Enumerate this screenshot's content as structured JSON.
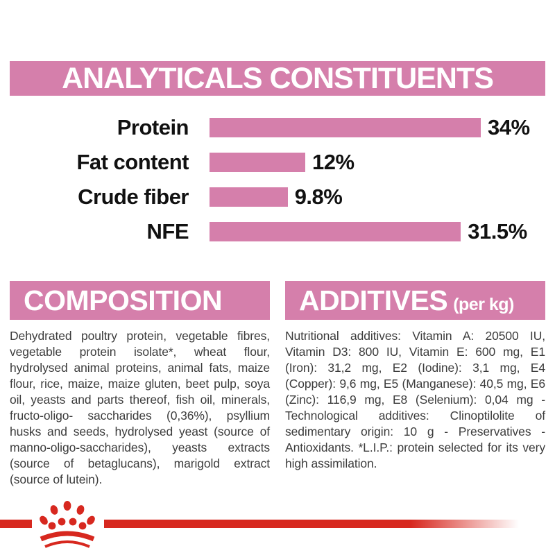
{
  "colors": {
    "pink": "#d57fab",
    "red": "#d7281f",
    "heading_text": "#ffffff",
    "chart_text": "#111111",
    "body_text": "#3c3c3c"
  },
  "analyticals": {
    "title": "ANALYTICALS CONSTITUENTS"
  },
  "chart_data": {
    "type": "bar",
    "orientation": "horizontal",
    "title": "ANALYTICALS CONSTITUENTS",
    "categories": [
      "Protein",
      "Fat content",
      "Crude fiber",
      "NFE"
    ],
    "values": [
      34,
      12,
      9.8,
      31.5
    ],
    "value_labels": [
      "34%",
      "12%",
      "9.8%",
      "31.5%"
    ],
    "xlabel": "",
    "ylabel": "",
    "xlim": [
      0,
      40
    ],
    "grid": false,
    "legend": false,
    "bar_color": "#d57fab",
    "value_label_position": "right-of-bar"
  },
  "composition": {
    "title": "COMPOSITION",
    "body": "Dehydrated poultry protein, vegetable fibres, vegetable protein isolate*, wheat flour, hydrolysed animal proteins, animal fats, maize flour, rice, maize, maize gluten, beet pulp, soya oil, yeasts and parts thereof, fish oil, minerals, fructo-oligo- saccharides (0,36%), psyllium husks and seeds, hydrolysed yeast (source of manno-oligo-saccharides), yeasts extracts (source of betaglucans), marigold extract (source of lutein)."
  },
  "additives": {
    "title": "ADDITIVES",
    "title_suffix": "(per kg)",
    "body": "Nutritional additives: Vitamin A: 20500 IU, Vitamin D3: 800 IU, Vitamin E: 600 mg, E1 (Iron): 31,2 mg, E2 (Iodine): 3,1 mg, E4 (Copper): 9,6 mg, E5 (Manganese): 40,5 mg, E6 (Zinc): 116,9 mg, E8 (Selenium): 0,04 mg - Technological additives: Clinoptilolite of sedimentary origin: 10 g - Preservatives - Antioxidants. *L.I.P.: protein selected for its very high assimilation."
  },
  "footer": {
    "brand_icon": "royal-canin-crown-icon"
  }
}
